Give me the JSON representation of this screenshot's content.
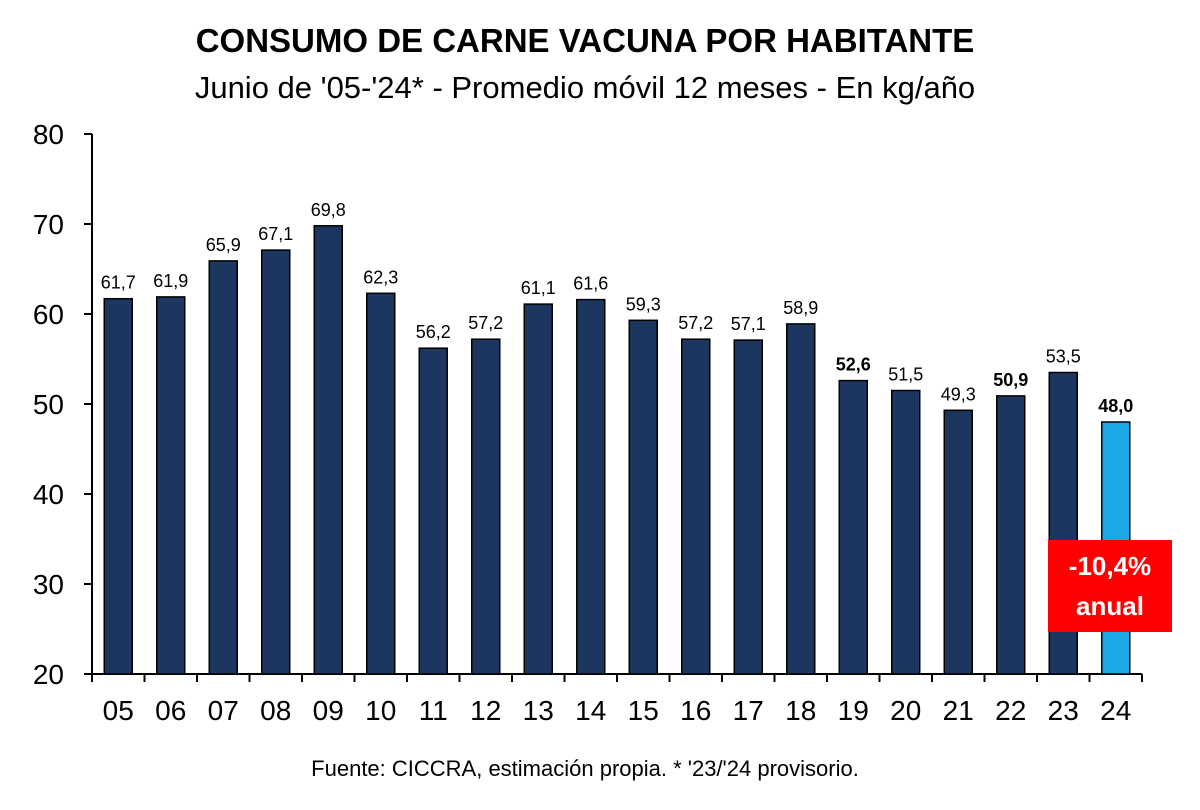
{
  "chart_data": {
    "type": "bar",
    "title": "CONSUMO DE CARNE VACUNA POR HABITANTE",
    "subtitle": "Junio de '05-'24* - Promedio móvil 12 meses -  En kg/año",
    "categories": [
      "05",
      "06",
      "07",
      "08",
      "09",
      "10",
      "11",
      "12",
      "13",
      "14",
      "15",
      "16",
      "17",
      "18",
      "19",
      "20",
      "21",
      "22",
      "23",
      "24"
    ],
    "values": [
      61.7,
      61.9,
      65.9,
      67.1,
      69.8,
      62.3,
      56.2,
      57.2,
      61.1,
      61.6,
      59.3,
      57.2,
      57.1,
      58.9,
      52.6,
      51.5,
      49.3,
      50.9,
      53.5,
      48.0
    ],
    "value_labels": [
      "61,7",
      "61,9",
      "65,9",
      "67,1",
      "69,8",
      "62,3",
      "56,2",
      "57,2",
      "61,1",
      "61,6",
      "59,3",
      "57,2",
      "57,1",
      "58,9",
      "52,6",
      "51,5",
      "49,3",
      "50,9",
      "53,5",
      "48,0"
    ],
    "bold_labels": [
      "19",
      "22",
      "24"
    ],
    "highlight_category": "24",
    "ylim": [
      20,
      80
    ],
    "yticks": [
      20,
      30,
      40,
      50,
      60,
      70,
      80
    ],
    "grid": false,
    "colors": {
      "bar": "#1b365f",
      "highlight": "#1ba8e8",
      "callout": "#ff0000"
    },
    "annotation": {
      "line1": "-10,4%",
      "line2": "anual"
    },
    "source": "Fuente: CICCRA, estimación propia. * '23/'24 provisorio."
  }
}
